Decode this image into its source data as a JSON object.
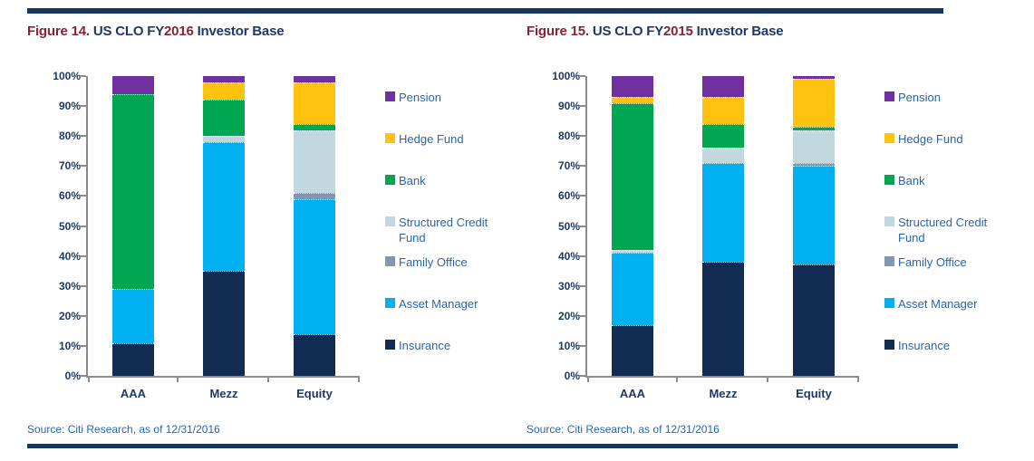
{
  "colors": {
    "accent_rule": "#17365d",
    "title_navy": "#1f3864",
    "figure_label_red": "#822433",
    "axis_line": "#8c8c8c",
    "axis_text": "#1f3864",
    "legend_text": "#2765ad"
  },
  "chart_data": [
    {
      "type": "bar",
      "stacked": true,
      "title": "Figure 14. US CLO FY2016 Investor Base",
      "title_parts": [
        {
          "text": "Figure 14. ",
          "color": "#822433"
        },
        {
          "text": "US CLO FY",
          "color": "#1f3864"
        },
        {
          "text": "2016",
          "color": "#822433"
        },
        {
          "text": " Investor Base",
          "color": "#1f3864"
        }
      ],
      "categories": [
        "AAA",
        "Mezz",
        "Equity"
      ],
      "y_ticks": [
        "100%",
        "90%",
        "80%",
        "70%",
        "60%",
        "50%",
        "40%",
        "30%",
        "20%",
        "10%",
        "0%"
      ],
      "ylim": [
        0,
        100
      ],
      "unit": "%",
      "grid": false,
      "legend_position": "right",
      "series": [
        {
          "name": "Insurance",
          "color": "#122c54",
          "values": [
            11,
            35,
            14
          ]
        },
        {
          "name": "Asset Manager",
          "color": "#00b0f0",
          "values": [
            18,
            43,
            45
          ]
        },
        {
          "name": "Family Office",
          "color": "#8496b0",
          "values": [
            0,
            0,
            2
          ]
        },
        {
          "name": "Structured Credit Fund",
          "color": "#c2d8df",
          "values": [
            0,
            2,
            21
          ]
        },
        {
          "name": "Bank",
          "color": "#00a651",
          "values": [
            65,
            12,
            2
          ]
        },
        {
          "name": "Hedge Fund",
          "color": "#ffc20e",
          "values": [
            0,
            6,
            14
          ]
        },
        {
          "name": "Pension",
          "color": "#7030a0",
          "values": [
            6,
            2,
            2
          ]
        }
      ],
      "source": "Source: Citi Research, as of 12/31/2016"
    },
    {
      "type": "bar",
      "stacked": true,
      "title": "Figure 15. US CLO FY2015 Investor Base",
      "title_parts": [
        {
          "text": "Figure 15. ",
          "color": "#822433"
        },
        {
          "text": "US CLO FY",
          "color": "#1f3864"
        },
        {
          "text": "2015",
          "color": "#822433"
        },
        {
          "text": " Investor Base",
          "color": "#1f3864"
        }
      ],
      "categories": [
        "AAA",
        "Mezz",
        "Equity"
      ],
      "y_ticks": [
        "100%",
        "90%",
        "80%",
        "70%",
        "60%",
        "50%",
        "40%",
        "30%",
        "20%",
        "10%",
        "0%"
      ],
      "ylim": [
        0,
        100
      ],
      "unit": "%",
      "grid": false,
      "legend_position": "right",
      "series": [
        {
          "name": "Insurance",
          "color": "#122c54",
          "values": [
            17,
            38,
            37
          ]
        },
        {
          "name": "Asset Manager",
          "color": "#00b0f0",
          "values": [
            24,
            33,
            33
          ]
        },
        {
          "name": "Family Office",
          "color": "#8496b0",
          "values": [
            0,
            0,
            1
          ]
        },
        {
          "name": "Structured Credit Fund",
          "color": "#c2d8df",
          "values": [
            1,
            5,
            11
          ]
        },
        {
          "name": "Bank",
          "color": "#00a651",
          "values": [
            49,
            8,
            1
          ]
        },
        {
          "name": "Hedge Fund",
          "color": "#ffc20e",
          "values": [
            2,
            9,
            16
          ]
        },
        {
          "name": "Pension",
          "color": "#7030a0",
          "values": [
            7,
            7,
            1
          ]
        }
      ],
      "source": "Source: Citi Research, as of 12/31/2016"
    }
  ]
}
